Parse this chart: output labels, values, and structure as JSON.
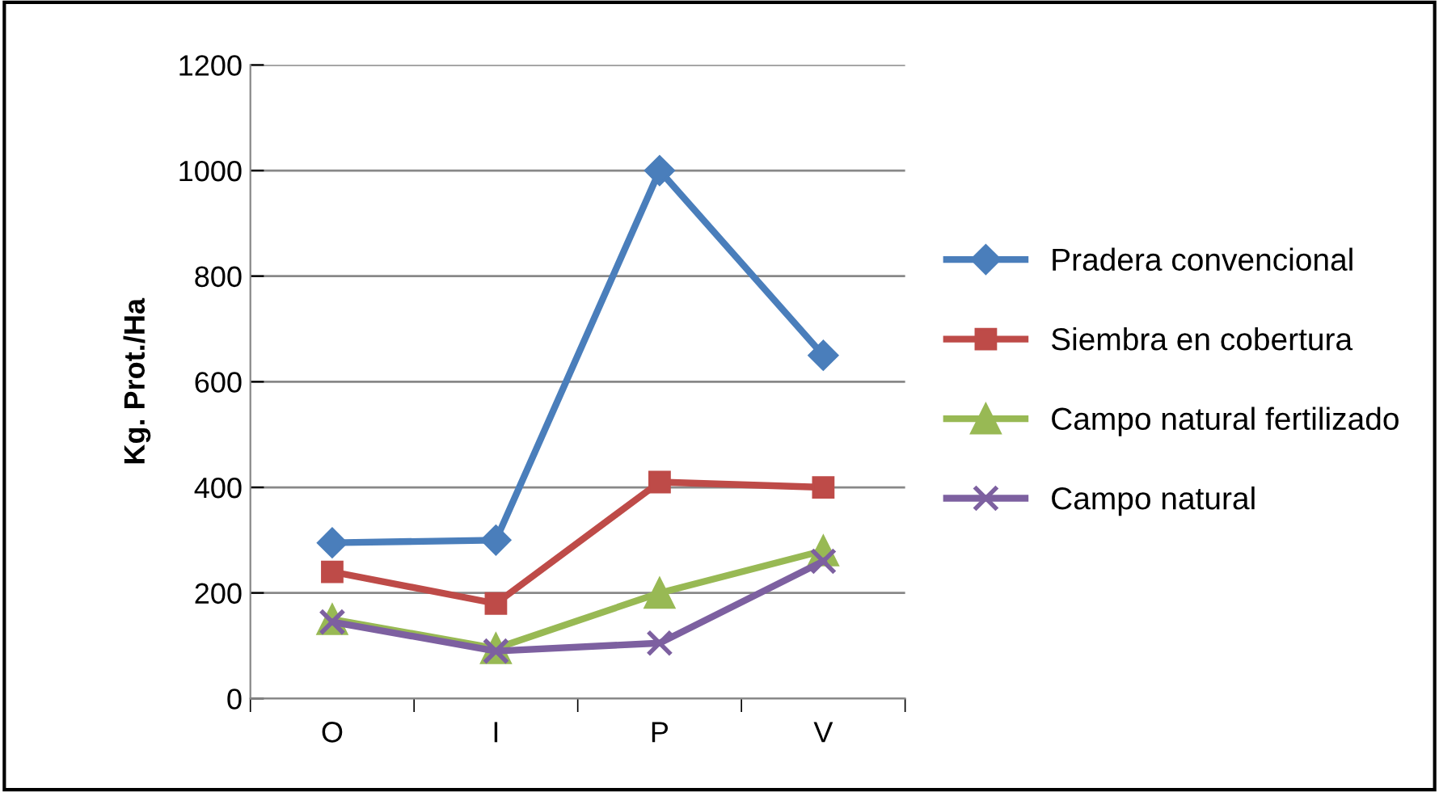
{
  "chart_data": {
    "type": "line",
    "ylabel": "Kg. Prot./Ha",
    "categories": [
      "O",
      "I",
      "P",
      "V"
    ],
    "ylim": [
      0,
      1200
    ],
    "yticks": [
      0,
      200,
      400,
      600,
      800,
      1000,
      1200
    ],
    "grid": "y",
    "legend": "right",
    "series": [
      {
        "name": "Pradera convencional",
        "color": "#4a7ebb",
        "marker": "diamond",
        "values": [
          295,
          300,
          1000,
          650
        ]
      },
      {
        "name": "Siembra en cobertura",
        "color": "#be4b48",
        "marker": "square",
        "values": [
          240,
          180,
          410,
          400
        ]
      },
      {
        "name": "Campo natural fertilizado",
        "color": "#98b954",
        "marker": "triangle",
        "values": [
          150,
          95,
          200,
          280
        ]
      },
      {
        "name": "Campo natural",
        "color": "#7d60a0",
        "marker": "cross",
        "values": [
          145,
          90,
          105,
          260
        ]
      }
    ]
  }
}
